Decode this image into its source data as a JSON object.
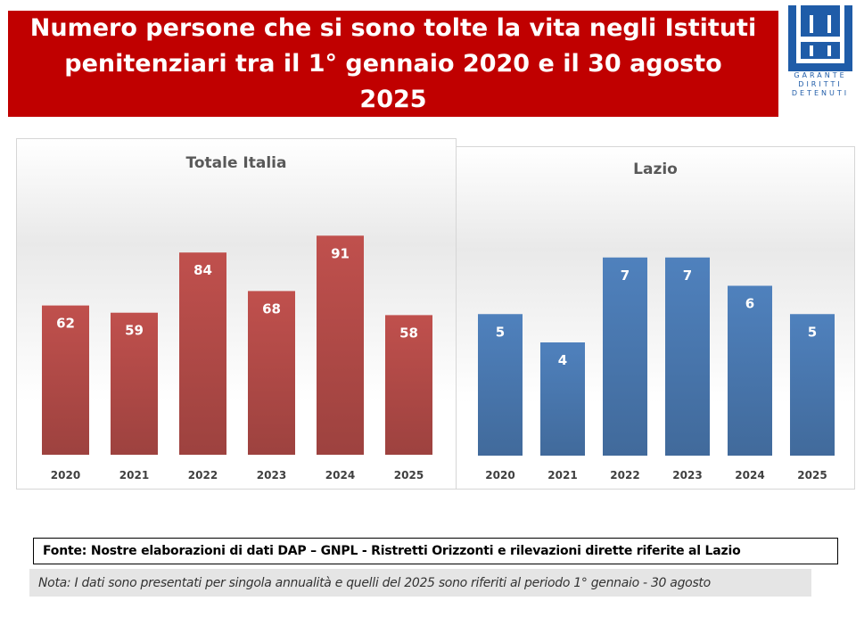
{
  "header": {
    "title": "Numero persone che si sono tolte la vita negli Istituti penitenziari tra il 1° gennaio 2020 e il 30 agosto 2025",
    "logo_lines": [
      "GARANTE",
      "DIRITTI",
      "DETENUTI"
    ],
    "brand_color": "#c00000",
    "logo_color": "#1f5ca8"
  },
  "chart_data": [
    {
      "type": "bar",
      "title": "Totale Italia",
      "categories": [
        "2020",
        "2021",
        "2022",
        "2023",
        "2024",
        "2025"
      ],
      "values": [
        62,
        59,
        84,
        68,
        91,
        58
      ],
      "ylim": [
        0,
        100
      ],
      "grid": false,
      "color": "#c0504d"
    },
    {
      "type": "bar",
      "title": "Lazio",
      "categories": [
        "2020",
        "2021",
        "2022",
        "2023",
        "2024",
        "2025"
      ],
      "values": [
        5,
        4,
        7,
        7,
        6,
        5
      ],
      "ylim": [
        0,
        8
      ],
      "grid": false,
      "color": "#4f81bd"
    }
  ],
  "footer": {
    "source": "Fonte: Nostre  elaborazioni di dati DAP – GNPL - Ristretti Orizzonti e rilevazioni dirette riferite al Lazio",
    "note": "Nota: I dati sono presentati per singola annualità e quelli del 2025 sono riferiti al periodo 1° gennaio - 30 agosto"
  }
}
